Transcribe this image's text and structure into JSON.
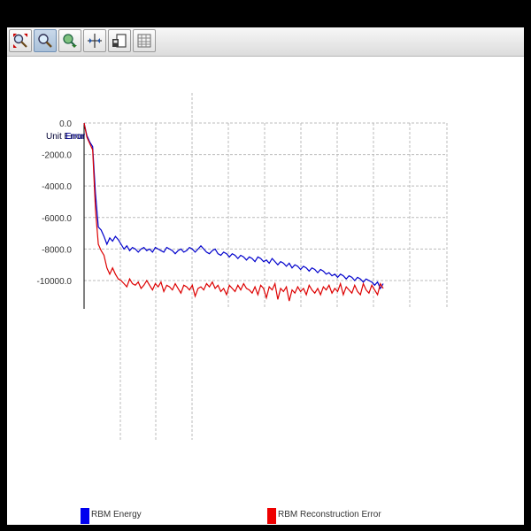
{
  "toolbar": {
    "buttons": [
      {
        "name": "zoom-to-fit-icon",
        "active": false
      },
      {
        "name": "zoom-icon",
        "active": true
      },
      {
        "name": "pan-icon",
        "active": false
      },
      {
        "name": "scale-icon",
        "active": false
      },
      {
        "name": "save-icon",
        "active": false
      },
      {
        "name": "grid-table-icon",
        "active": false
      }
    ]
  },
  "colors": {
    "energy": "#0000cc",
    "error": "#dd0000",
    "grid": "#bbbbbb"
  },
  "chart_data": {
    "type": "line",
    "ylabel_1": "Unit Error",
    "ylabel_2": "Error",
    "ylim": [
      -11800,
      0
    ],
    "yticks": [
      "0.0",
      "-2000.0",
      "-4000.0",
      "-6000.0",
      "-8000.0",
      "-10000.0"
    ],
    "grid": true,
    "legend_position": "bottom",
    "series": [
      {
        "name": "RBM Energy",
        "color": "#0000cc",
        "y": [
          0,
          -800,
          -1200,
          -1500,
          -4500,
          -6600,
          -6800,
          -7200,
          -7700,
          -7300,
          -7500,
          -7200,
          -7400,
          -7700,
          -8000,
          -7800,
          -8100,
          -7900,
          -8000,
          -8200,
          -8000,
          -7900,
          -8100,
          -8000,
          -8200,
          -7900,
          -8000,
          -8100,
          -8200,
          -7900,
          -8000,
          -8100,
          -8300,
          -8100,
          -8000,
          -8200,
          -8100,
          -7900,
          -8000,
          -8200,
          -8000,
          -7800,
          -8000,
          -8200,
          -8300,
          -8100,
          -8000,
          -8300,
          -8400,
          -8200,
          -8300,
          -8500,
          -8300,
          -8400,
          -8600,
          -8400,
          -8500,
          -8700,
          -8500,
          -8600,
          -8800,
          -8500,
          -8600,
          -8800,
          -8700,
          -8900,
          -8600,
          -8800,
          -9000,
          -8800,
          -8900,
          -9100,
          -8900,
          -9200,
          -9000,
          -9100,
          -9300,
          -9100,
          -9200,
          -9400,
          -9200,
          -9300,
          -9500,
          -9300,
          -9400,
          -9600,
          -9500,
          -9700,
          -9600,
          -9800,
          -9600,
          -9700,
          -9900,
          -9700,
          -9800,
          -10000,
          -9800,
          -9900,
          -10100,
          -9900,
          -10000,
          -10100,
          -10300,
          -10100,
          -10500,
          -10200
        ]
      },
      {
        "name": "RBM Reconstruction Error",
        "color": "#dd0000",
        "y": [
          0,
          -900,
          -1300,
          -1700,
          -5500,
          -7700,
          -8100,
          -8400,
          -9200,
          -9600,
          -9200,
          -9600,
          -9900,
          -10000,
          -10200,
          -10400,
          -9900,
          -10200,
          -10300,
          -10100,
          -10500,
          -10300,
          -10000,
          -10300,
          -10600,
          -10200,
          -10400,
          -10100,
          -10700,
          -10300,
          -10400,
          -10600,
          -10200,
          -10500,
          -10800,
          -10300,
          -10400,
          -10600,
          -10300,
          -11000,
          -10500,
          -10400,
          -10600,
          -10200,
          -10400,
          -10100,
          -10500,
          -10300,
          -10700,
          -10500,
          -10900,
          -10300,
          -10500,
          -10700,
          -10300,
          -10600,
          -10200,
          -10500,
          -10600,
          -10800,
          -10400,
          -10900,
          -10300,
          -10500,
          -11100,
          -10400,
          -10600,
          -10200,
          -11200,
          -10500,
          -10700,
          -10400,
          -11300,
          -10600,
          -10800,
          -10400,
          -10700,
          -10500,
          -10900,
          -10300,
          -10600,
          -10800,
          -10500,
          -10900,
          -10400,
          -10600,
          -10300,
          -10800,
          -10500,
          -10700,
          -10200,
          -10900,
          -10400,
          -10600,
          -10800,
          -10300,
          -10700,
          -10900,
          -10200,
          -10600,
          -10800,
          -10300,
          -10600,
          -10900,
          -10200,
          -10500
        ]
      }
    ]
  }
}
